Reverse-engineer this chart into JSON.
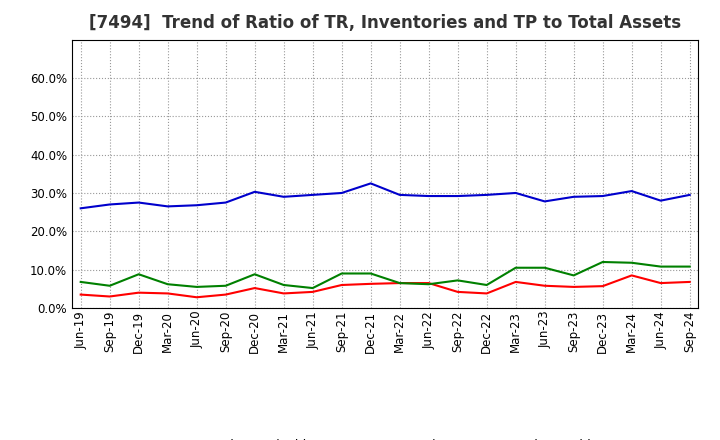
{
  "title": "[7494]  Trend of Ratio of TR, Inventories and TP to Total Assets",
  "x_labels": [
    "Jun-19",
    "Sep-19",
    "Dec-19",
    "Mar-20",
    "Jun-20",
    "Sep-20",
    "Dec-20",
    "Mar-21",
    "Jun-21",
    "Sep-21",
    "Dec-21",
    "Mar-22",
    "Jun-22",
    "Sep-22",
    "Dec-22",
    "Mar-23",
    "Jun-23",
    "Sep-23",
    "Dec-23",
    "Mar-24",
    "Jun-24",
    "Sep-24"
  ],
  "trade_receivables": [
    0.035,
    0.03,
    0.04,
    0.038,
    0.028,
    0.035,
    0.052,
    0.038,
    0.042,
    0.06,
    0.063,
    0.065,
    0.065,
    0.042,
    0.038,
    0.068,
    0.058,
    0.055,
    0.057,
    0.085,
    0.065,
    0.068
  ],
  "inventories": [
    0.26,
    0.27,
    0.275,
    0.265,
    0.268,
    0.275,
    0.303,
    0.29,
    0.295,
    0.3,
    0.325,
    0.295,
    0.292,
    0.292,
    0.295,
    0.3,
    0.278,
    0.29,
    0.292,
    0.305,
    0.28,
    0.295
  ],
  "trade_payables": [
    0.068,
    0.058,
    0.088,
    0.062,
    0.055,
    0.058,
    0.088,
    0.06,
    0.052,
    0.09,
    0.09,
    0.065,
    0.062,
    0.072,
    0.06,
    0.105,
    0.105,
    0.085,
    0.12,
    0.118,
    0.108,
    0.108
  ],
  "ylim": [
    0.0,
    0.7
  ],
  "yticks": [
    0.0,
    0.1,
    0.2,
    0.3,
    0.4,
    0.5,
    0.6
  ],
  "tr_color": "#FF0000",
  "inv_color": "#0000CC",
  "tp_color": "#008000",
  "bg_color": "#FFFFFF",
  "plot_bg_color": "#FFFFFF",
  "grid_color": "#999999",
  "title_fontsize": 12,
  "legend_fontsize": 9,
  "tick_fontsize": 8.5,
  "line_width": 1.5
}
